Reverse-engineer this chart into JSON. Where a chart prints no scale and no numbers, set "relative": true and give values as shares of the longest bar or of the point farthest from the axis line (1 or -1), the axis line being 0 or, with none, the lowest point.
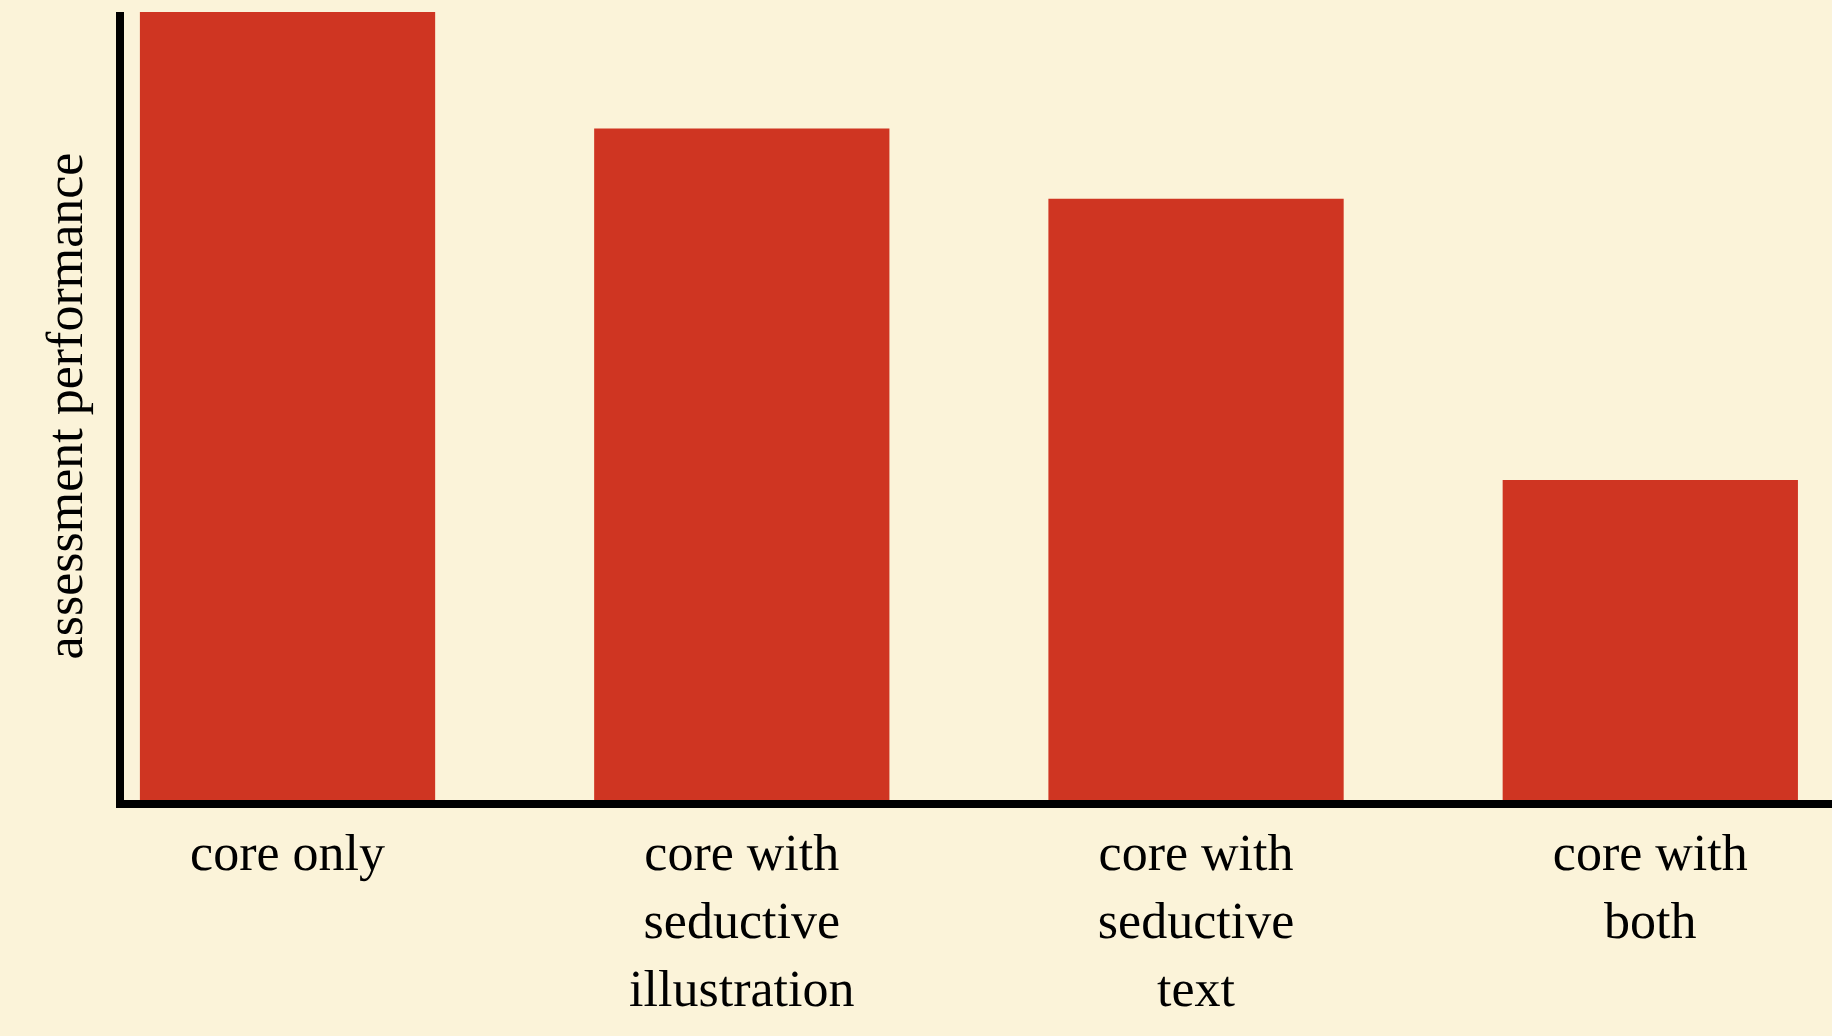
{
  "chart_data": {
    "type": "bar",
    "ylabel": "assessment performance",
    "relative": true,
    "categories": [
      "core only",
      "core with\nseductive\nillustration",
      "core with\nseductive\ntext",
      "core with\nboth"
    ],
    "values": [
      1,
      0.852,
      0.763,
      0.406
    ],
    "color": "#cf3522",
    "grid": false,
    "legend": false
  }
}
